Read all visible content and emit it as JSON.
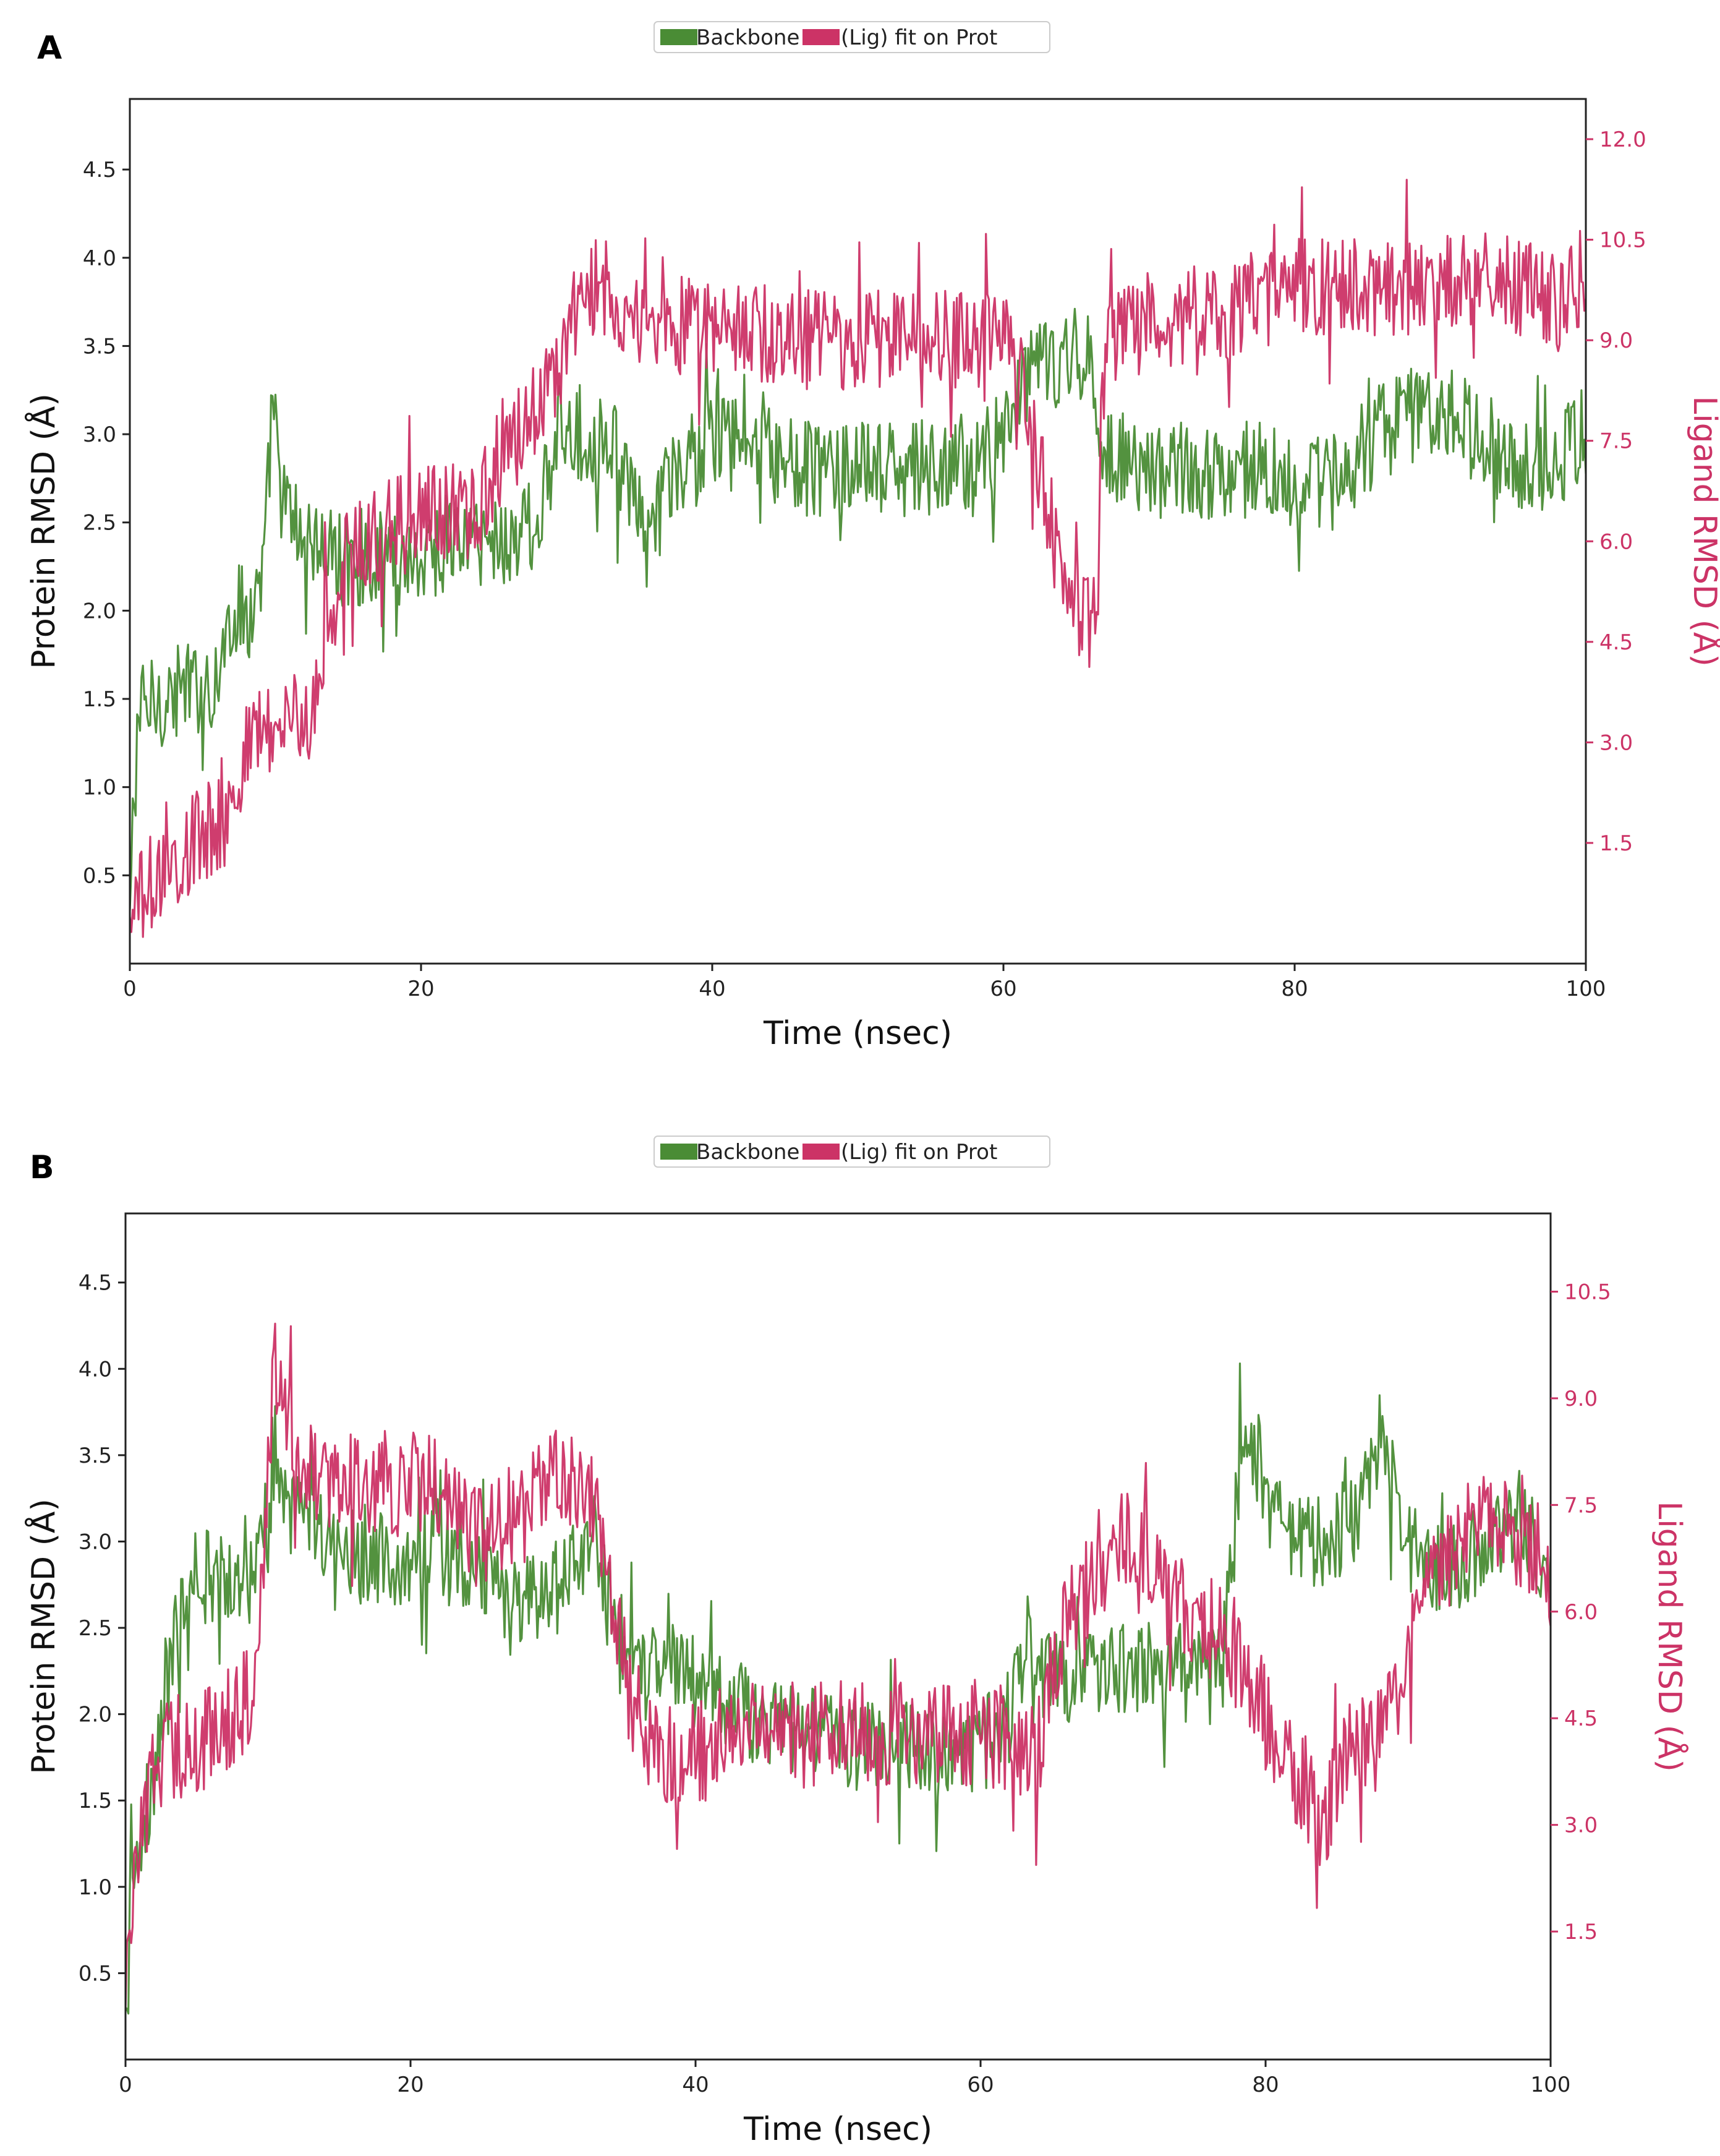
{
  "figure": {
    "colors": {
      "protein": "#4a8c35",
      "ligand": "#cc3366",
      "axis": "#222222",
      "legend_border": "#cccccc"
    }
  },
  "chart_data": [
    {
      "panel_label": "A",
      "type": "line",
      "title": "",
      "legend": {
        "placement": "top-center",
        "entries": [
          "Backbone",
          "(Lig) fit on Prot"
        ]
      },
      "xlabel": "Time (nsec)",
      "ylabel_left": "Protein RMSD (Å)",
      "ylabel_right": "Ligand RMSD (Å)",
      "xlim": [
        0,
        100
      ],
      "ylim_left": [
        0.0,
        4.9
      ],
      "ylim_right": [
        -0.3,
        12.6
      ],
      "xticks": [
        0,
        20,
        40,
        60,
        80,
        100
      ],
      "yticks_left": [
        0.5,
        1.0,
        1.5,
        2.0,
        2.5,
        3.0,
        3.5,
        4.0,
        4.5
      ],
      "yticks_right": [
        1.5,
        3.0,
        4.5,
        6.0,
        7.5,
        9.0,
        10.5,
        12.0
      ],
      "series": [
        {
          "name": "Backbone",
          "axis": "left",
          "x": [
            0,
            0.5,
            2,
            4,
            6,
            7,
            8.5,
            9.2,
            9.8,
            10.5,
            12,
            14,
            16,
            18,
            20,
            22,
            24,
            26,
            28,
            29.5,
            31,
            33,
            34.5,
            35.5,
            37,
            40,
            43,
            46,
            50,
            54,
            58,
            60,
            62,
            64,
            66,
            67,
            70,
            74,
            78,
            82,
            86,
            90,
            94,
            97,
            100
          ],
          "values": [
            0.3,
            1.4,
            1.5,
            1.55,
            1.6,
            2.0,
            2.0,
            2.2,
            3.2,
            2.6,
            2.4,
            2.3,
            2.3,
            2.3,
            2.3,
            2.4,
            2.4,
            2.4,
            2.5,
            3.0,
            3.0,
            3.0,
            2.6,
            2.4,
            2.7,
            3.0,
            2.9,
            2.8,
            2.8,
            2.8,
            2.8,
            3.0,
            3.4,
            3.4,
            3.4,
            2.9,
            2.8,
            2.8,
            2.8,
            2.7,
            3.0,
            3.2,
            2.9,
            2.8,
            3.0
          ]
        },
        {
          "name": "(Lig) fit on Prot",
          "axis": "right",
          "x": [
            0,
            1,
            3,
            5,
            7,
            8,
            10,
            12.5,
            13.5,
            15,
            18,
            21,
            24,
            26,
            28,
            30,
            31.5,
            33,
            35,
            38,
            42,
            45,
            48,
            52,
            56,
            59,
            61,
            63,
            64.5,
            66.4,
            66.8,
            68,
            72,
            76,
            80,
            84,
            88,
            92,
            96,
            98,
            100
          ],
          "values": [
            0.4,
            0.8,
            1.2,
            1.6,
            2.0,
            3.0,
            3.3,
            3.3,
            4.8,
            5.8,
            6.2,
            6.4,
            6.5,
            7.6,
            8.0,
            9.0,
            9.8,
            9.8,
            9.2,
            9.2,
            9.2,
            9.0,
            9.0,
            9.0,
            9.0,
            9.0,
            8.8,
            6.5,
            5.0,
            4.6,
            8.5,
            9.3,
            9.3,
            9.5,
            9.8,
            9.8,
            9.8,
            9.9,
            9.8,
            9.5,
            10.0
          ]
        }
      ]
    },
    {
      "panel_label": "B",
      "type": "line",
      "title": "",
      "legend": {
        "placement": "top-center",
        "entries": [
          "Backbone",
          "(Lig) fit on Prot"
        ]
      },
      "xlabel": "Time (nsec)",
      "ylabel_left": "Protein RMSD (Å)",
      "ylabel_right": "Ligand RMSD (Å)",
      "xlim": [
        0,
        100
      ],
      "ylim_left": [
        0.0,
        4.9
      ],
      "ylim_right": [
        -0.3,
        11.6
      ],
      "xticks": [
        0,
        20,
        40,
        60,
        80,
        100
      ],
      "yticks_left": [
        0.5,
        1.0,
        1.5,
        2.0,
        2.5,
        3.0,
        3.5,
        4.0,
        4.5
      ],
      "yticks_right": [
        1.5,
        3.0,
        4.5,
        6.0,
        7.5,
        9.0,
        10.5
      ],
      "series": [
        {
          "name": "Backbone",
          "axis": "left",
          "x": [
            0,
            0.5,
            2,
            3,
            5,
            7,
            9,
            10.5,
            12,
            15,
            18,
            21,
            24,
            27,
            30,
            33,
            34.5,
            36,
            38,
            40,
            44,
            48,
            52,
            56,
            60,
            62,
            63.5,
            66,
            70,
            74,
            77,
            78.5,
            81,
            84,
            86,
            88,
            90,
            93,
            96,
            98,
            100
          ],
          "values": [
            0.3,
            1.2,
            1.6,
            2.3,
            2.8,
            2.8,
            2.9,
            3.2,
            3.2,
            3.0,
            2.9,
            2.9,
            2.9,
            2.6,
            2.7,
            3.0,
            2.4,
            2.2,
            2.3,
            2.2,
            2.0,
            1.9,
            1.8,
            1.8,
            1.8,
            2.0,
            2.5,
            2.2,
            2.3,
            2.2,
            2.3,
            3.7,
            3.1,
            3.0,
            3.1,
            3.6,
            3.0,
            2.8,
            3.0,
            3.2,
            2.7
          ]
        },
        {
          "name": "(Lig) fit on Prot",
          "axis": "right",
          "x": [
            0,
            1,
            3,
            5,
            7,
            9,
            10.5,
            11.5,
            13,
            16,
            19,
            22,
            25,
            28,
            31,
            33,
            34.5,
            36,
            40,
            44,
            48,
            52,
            56,
            60,
            62,
            64,
            66,
            68,
            70,
            74,
            78,
            80,
            82,
            84,
            86,
            88,
            92,
            95,
            98,
            100
          ],
          "values": [
            0.4,
            3.0,
            4.2,
            4.0,
            4.5,
            4.8,
            9.5,
            8.5,
            8.0,
            7.8,
            7.8,
            7.8,
            7.0,
            7.5,
            8.0,
            7.5,
            6.0,
            4.0,
            4.0,
            4.5,
            4.3,
            4.3,
            4.3,
            4.3,
            4.2,
            4.0,
            6.0,
            6.5,
            7.0,
            6.0,
            5.5,
            4.5,
            3.8,
            3.0,
            4.0,
            4.2,
            6.5,
            7.5,
            7.0,
            6.5
          ]
        }
      ]
    }
  ]
}
